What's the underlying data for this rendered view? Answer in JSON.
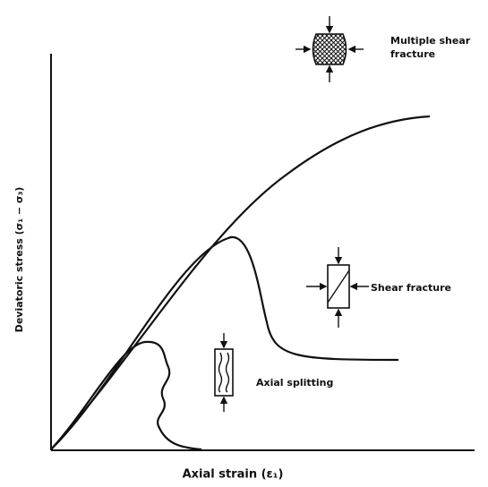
{
  "axes": {
    "y_label": "Deviatoric stress (σ₁ − σ₃)",
    "x_label": "Axial strain (ε₁)"
  },
  "annotations": {
    "multiple_shear": [
      "Multiple shear",
      "fracture"
    ],
    "shear": "Shear fracture",
    "axial_splitting": "Axial splitting"
  }
}
